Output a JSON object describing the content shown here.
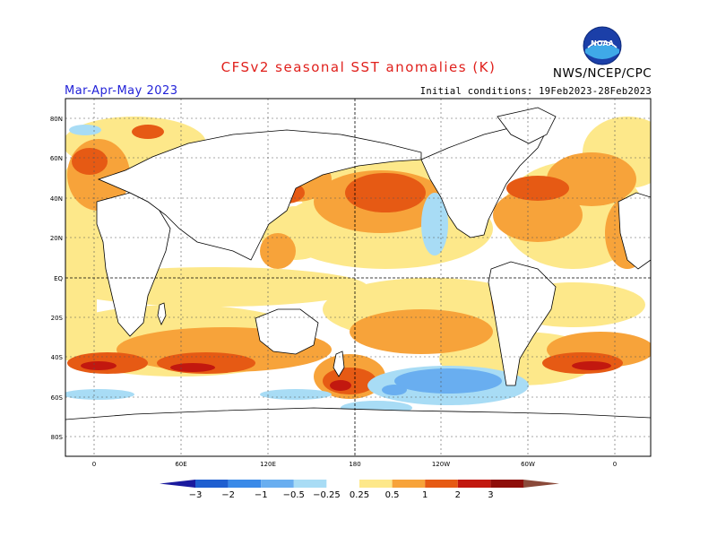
{
  "header": {
    "title": "CFSv2 seasonal SST anomalies (K)",
    "season": "Mar-Apr-May 2023",
    "initial_conditions": "Initial conditions: 19Feb2023-28Feb2023",
    "org": "NWS/NCEP/CPC",
    "logo_text": "NOAA"
  },
  "map": {
    "lat_labels": [
      "80N",
      "60N",
      "40N",
      "20N",
      "EQ",
      "20S",
      "40S",
      "60S",
      "80S"
    ],
    "lon_labels": [
      "0",
      "60E",
      "120E",
      "180",
      "120W",
      "60W",
      "0"
    ]
  },
  "colorbar": {
    "labels": [
      "−3",
      "−2",
      "−1",
      "−0.5",
      "−0.25",
      "0.25",
      "0.5",
      "1",
      "2",
      "3"
    ],
    "colors": [
      "#1a1a9e",
      "#1f5fd0",
      "#3a8ae8",
      "#69aef0",
      "#a8dcf5",
      "#ffffff",
      "#fde88a",
      "#f7a33a",
      "#e65a14",
      "#c2180f",
      "#8e0e0a",
      "#8a4a3a"
    ]
  }
}
